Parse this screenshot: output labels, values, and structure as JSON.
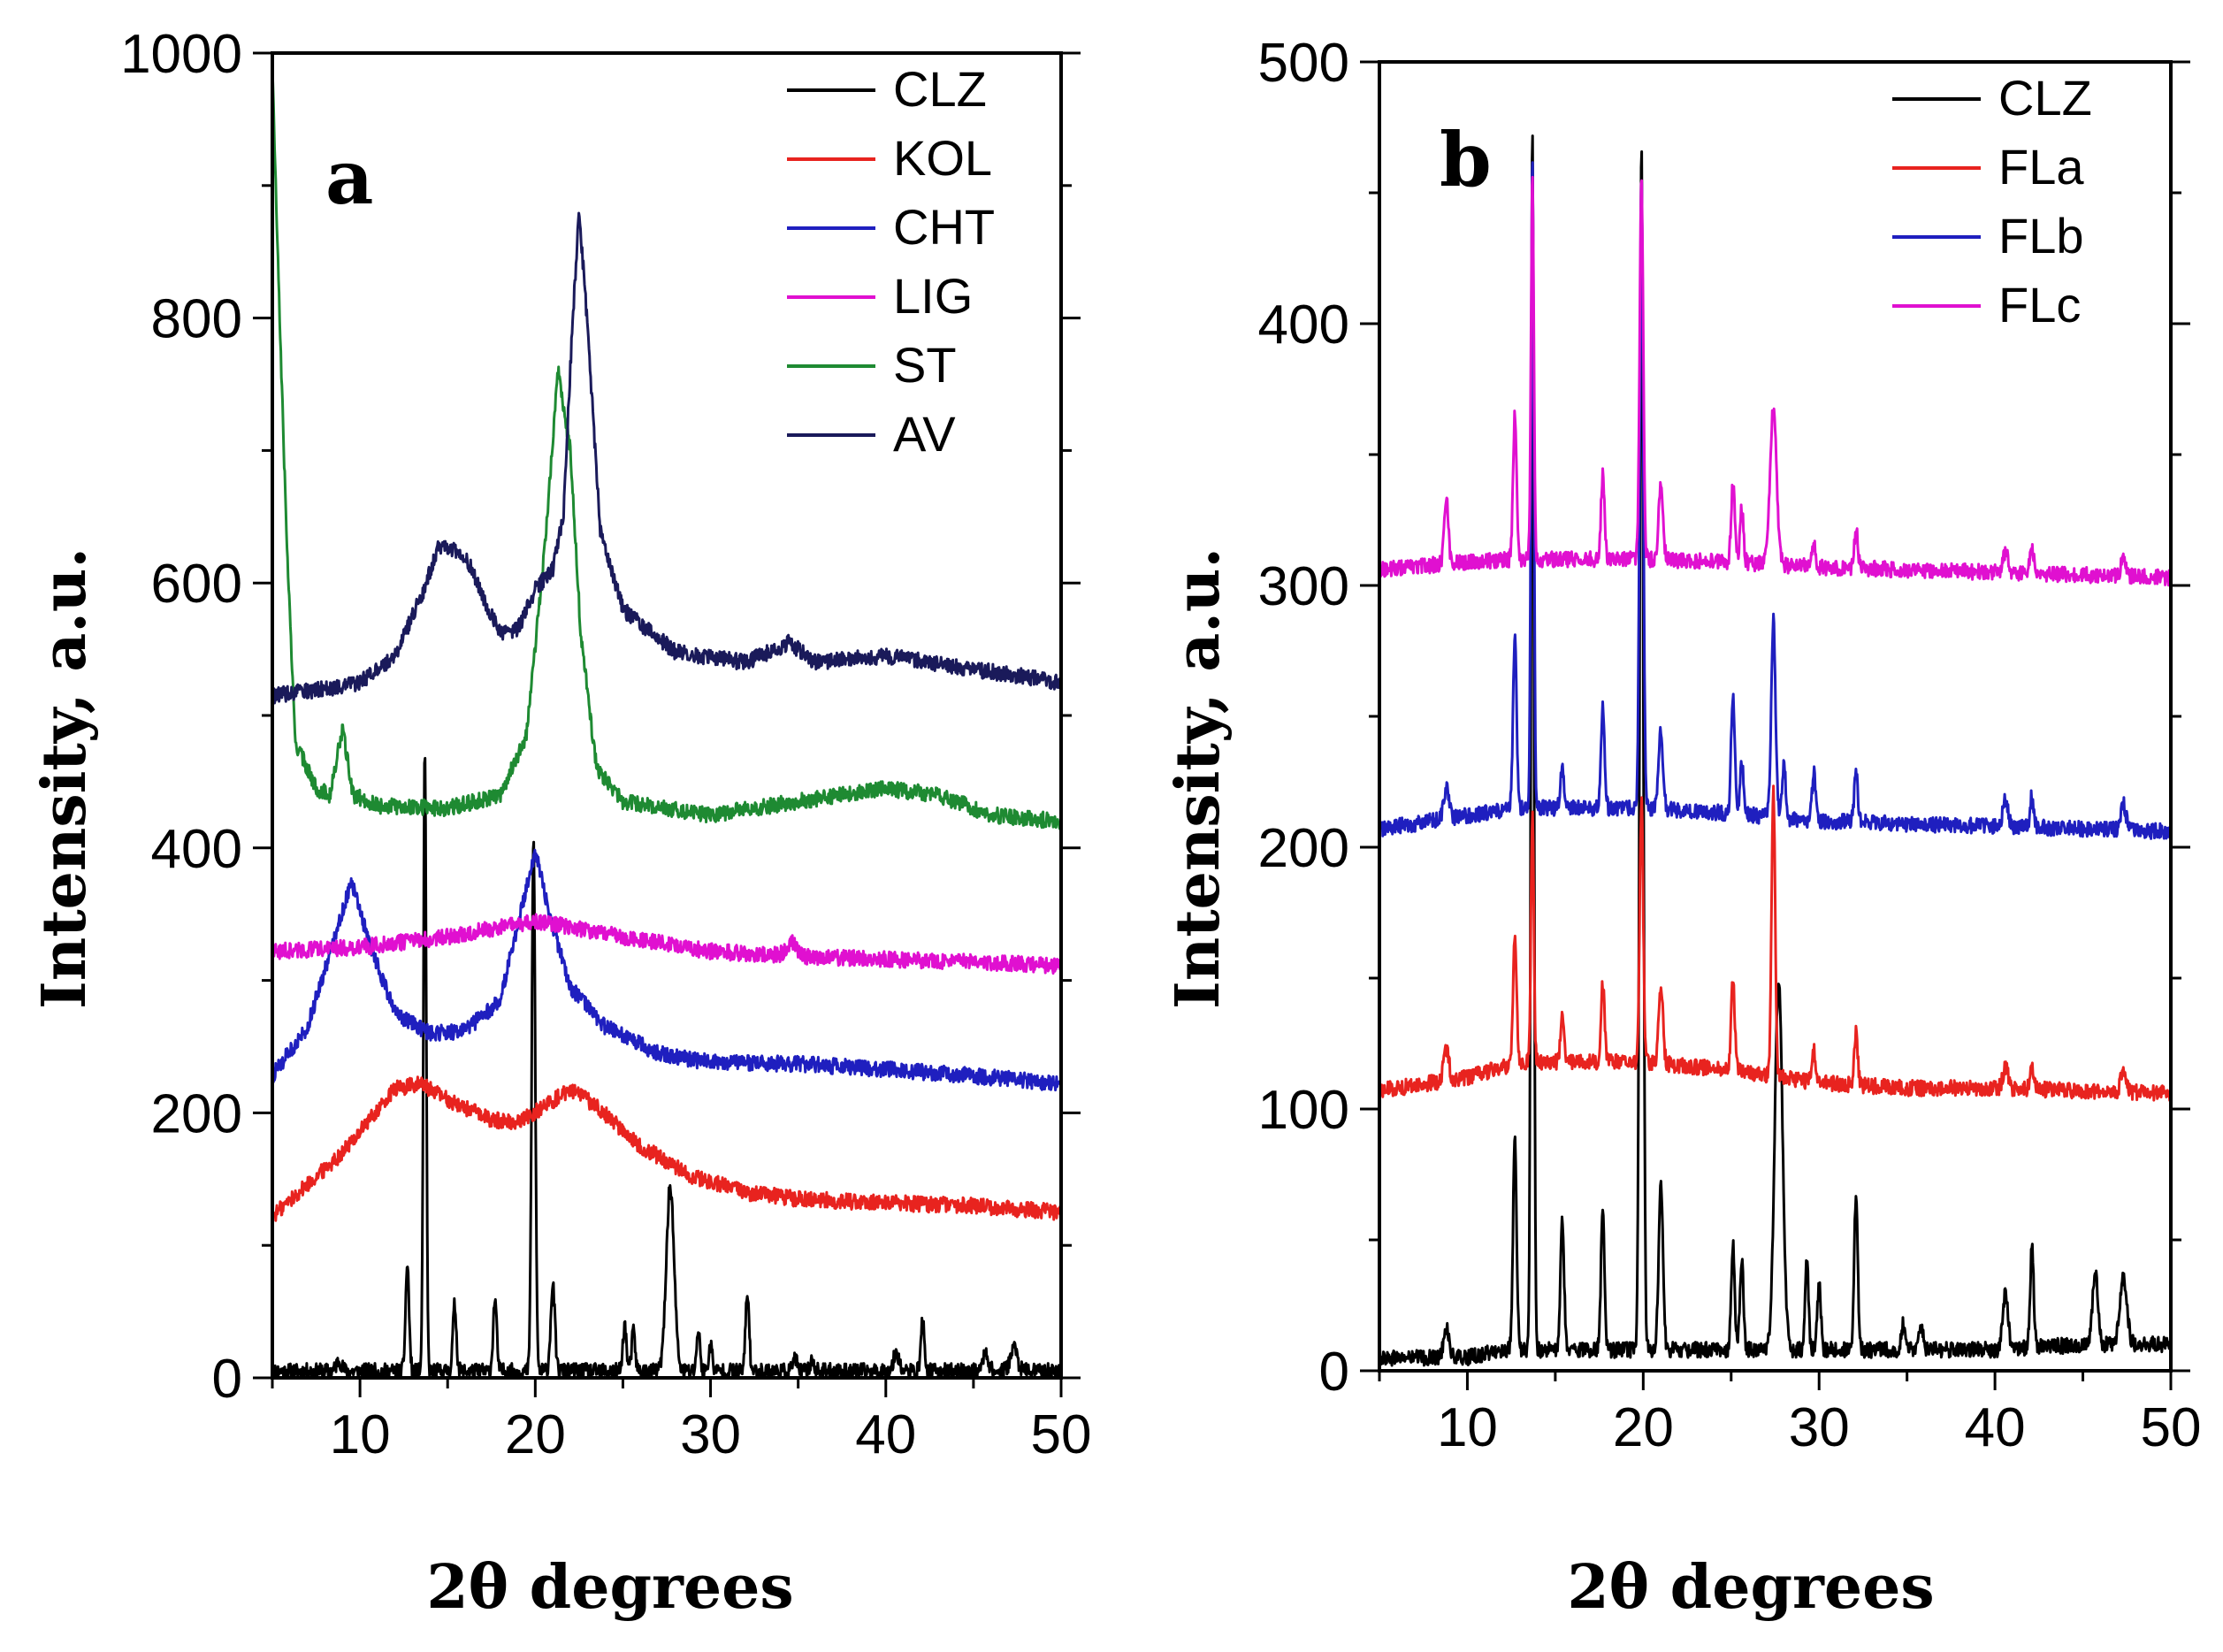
{
  "chart_data": [
    {
      "type": "line",
      "panel_label": "a",
      "xlabel": "2θ degrees",
      "ylabel": "Intensity, a.u.",
      "xlim": [
        5,
        50
      ],
      "ylim": [
        0,
        1000
      ],
      "xticks": [
        10,
        20,
        30,
        40,
        50
      ],
      "yticks": [
        0,
        200,
        400,
        600,
        800,
        1000
      ],
      "legend_position": "top-right",
      "series": [
        {
          "name": "CLZ",
          "color": "#000000",
          "baseline": 5,
          "anchors": [
            [
              5,
              5
            ],
            [
              50,
              5
            ]
          ],
          "peaks": [
            [
              8.8,
              8,
              0.15
            ],
            [
              12.7,
              80,
              0.1
            ],
            [
              13.7,
              470,
              0.08
            ],
            [
              15.4,
              50,
              0.1
            ],
            [
              17.7,
              55,
              0.1
            ],
            [
              19.9,
              400,
              0.1
            ],
            [
              21,
              65,
              0.12
            ],
            [
              25.1,
              35,
              0.1
            ],
            [
              25.6,
              30,
              0.1
            ],
            [
              27.7,
              140,
              0.22
            ],
            [
              29.3,
              30,
              0.1
            ],
            [
              30,
              20,
              0.1
            ],
            [
              32.1,
              60,
              0.1
            ],
            [
              34.8,
              10,
              0.12
            ],
            [
              35.8,
              8,
              0.12
            ],
            [
              40.6,
              15,
              0.15
            ],
            [
              42.1,
              38,
              0.1
            ],
            [
              45.7,
              15,
              0.15
            ],
            [
              47.3,
              18,
              0.2
            ]
          ]
        },
        {
          "name": "KOL",
          "color": "#e8231f",
          "anchors": [
            [
              5,
              122
            ],
            [
              9,
              170
            ],
            [
              12,
              218
            ],
            [
              13.5,
              222
            ],
            [
              15,
              210
            ],
            [
              17.5,
              195
            ],
            [
              19,
              193
            ],
            [
              20.5,
              205
            ],
            [
              22,
              218
            ],
            [
              23.5,
              205
            ],
            [
              26,
              175
            ],
            [
              29,
              152
            ],
            [
              32,
              140
            ],
            [
              35,
              135
            ],
            [
              40,
              132
            ],
            [
              45,
              130
            ],
            [
              50,
              125
            ]
          ],
          "peaks": []
        },
        {
          "name": "CHT",
          "color": "#1f1fbf",
          "anchors": [
            [
              5,
              228
            ],
            [
              7,
              265
            ],
            [
              8.5,
              330
            ],
            [
              9.5,
              375
            ],
            [
              10.5,
              330
            ],
            [
              12,
              275
            ],
            [
              14,
              260
            ],
            [
              16,
              262
            ],
            [
              18,
              285
            ],
            [
              19.5,
              370
            ],
            [
              20,
              398
            ],
            [
              20.8,
              350
            ],
            [
              22,
              295
            ],
            [
              24,
              265
            ],
            [
              27,
              245
            ],
            [
              30,
              238
            ],
            [
              35,
              237
            ],
            [
              40,
              233
            ],
            [
              45,
              228
            ],
            [
              50,
              222
            ]
          ],
          "peaks": []
        },
        {
          "name": "LIG",
          "color": "#e010d0",
          "anchors": [
            [
              5,
              322
            ],
            [
              10,
              325
            ],
            [
              15,
              333
            ],
            [
              20,
              345
            ],
            [
              25,
              333
            ],
            [
              30,
              322
            ],
            [
              35,
              318
            ],
            [
              40,
              316
            ],
            [
              45,
              314
            ],
            [
              50,
              311
            ]
          ],
          "peaks": [
            [
              34.6,
              10,
              0.3
            ]
          ]
        },
        {
          "name": "ST",
          "color": "#1e8a32",
          "anchors": [
            [
              5,
              990
            ],
            [
              5.3,
              850
            ],
            [
              5.8,
              640
            ],
            [
              6.3,
              480
            ],
            [
              7,
              460
            ],
            [
              7.5,
              445
            ],
            [
              8.3,
              440
            ],
            [
              9,
              490
            ],
            [
              9.6,
              440
            ],
            [
              11,
              432
            ],
            [
              15,
              430
            ],
            [
              18,
              440
            ],
            [
              19.5,
              485
            ],
            [
              20.5,
              620
            ],
            [
              21.3,
              760
            ],
            [
              22,
              700
            ],
            [
              22.6,
              560
            ],
            [
              23.5,
              460
            ],
            [
              25,
              435
            ],
            [
              30,
              425
            ],
            [
              35,
              435
            ],
            [
              40,
              445
            ],
            [
              43,
              440
            ],
            [
              46,
              425
            ],
            [
              50,
              420
            ]
          ],
          "peaks": []
        },
        {
          "name": "AV",
          "color": "#1a1a5a",
          "anchors": [
            [
              5,
              515
            ],
            [
              8,
              520
            ],
            [
              10,
              525
            ],
            [
              12,
              545
            ],
            [
              13.5,
              590
            ],
            [
              14.5,
              628
            ],
            [
              15.5,
              625
            ],
            [
              16.2,
              615
            ],
            [
              17,
              590
            ],
            [
              18,
              562
            ],
            [
              19,
              565
            ],
            [
              20,
              595
            ],
            [
              21,
              610
            ],
            [
              21.6,
              650
            ],
            [
              22.1,
              790
            ],
            [
              22.5,
              882
            ],
            [
              23,
              790
            ],
            [
              23.7,
              640
            ],
            [
              25,
              580
            ],
            [
              28,
              548
            ],
            [
              32,
              540
            ],
            [
              34.5,
              555
            ],
            [
              36,
              540
            ],
            [
              40,
              545
            ],
            [
              45,
              535
            ],
            [
              50,
              525
            ]
          ],
          "peaks": []
        }
      ]
    },
    {
      "type": "line",
      "panel_label": "b",
      "xlabel": "2θ degrees",
      "ylabel": "Intensity, a.u.",
      "xlim": [
        5,
        50
      ],
      "ylim": [
        0,
        500
      ],
      "xticks": [
        10,
        20,
        30,
        40,
        50
      ],
      "yticks": [
        0,
        100,
        200,
        300,
        400,
        500
      ],
      "legend_position": "top-right",
      "series": [
        {
          "name": "CLZ",
          "color": "#000000",
          "anchors": [
            [
              5,
              5
            ],
            [
              10,
              5
            ],
            [
              12,
              8
            ],
            [
              20,
              8
            ],
            [
              30,
              8
            ],
            [
              40,
              8
            ],
            [
              45,
              10
            ],
            [
              50,
              10
            ]
          ],
          "peaks": [
            [
              8.8,
              12,
              0.15
            ],
            [
              12.7,
              80,
              0.1
            ],
            [
              13.7,
              470,
              0.08
            ],
            [
              15.4,
              50,
              0.1
            ],
            [
              17.7,
              55,
              0.1
            ],
            [
              19.9,
              460,
              0.1
            ],
            [
              21,
              65,
              0.12
            ],
            [
              25.1,
              40,
              0.1
            ],
            [
              25.6,
              35,
              0.1
            ],
            [
              27.7,
              140,
              0.22
            ],
            [
              29.3,
              35,
              0.1
            ],
            [
              30,
              25,
              0.1
            ],
            [
              32.1,
              60,
              0.1
            ],
            [
              34.8,
              10,
              0.12
            ],
            [
              35.8,
              8,
              0.12
            ],
            [
              40.6,
              22,
              0.15
            ],
            [
              42.1,
              38,
              0.1
            ],
            [
              45.7,
              28,
              0.15
            ],
            [
              47.3,
              25,
              0.2
            ]
          ]
        },
        {
          "name": "FLa",
          "color": "#e8231f",
          "anchors": [
            [
              5,
              107
            ],
            [
              10,
              112
            ],
            [
              13,
              118
            ],
            [
              20,
              118
            ],
            [
              25,
              115
            ],
            [
              30,
              110
            ],
            [
              35,
              108
            ],
            [
              40,
              108
            ],
            [
              45,
              107
            ],
            [
              50,
              106
            ]
          ],
          "peaks": [
            [
              8.8,
              12,
              0.15
            ],
            [
              12.7,
              50,
              0.1
            ],
            [
              13.7,
              95,
              0.08
            ],
            [
              15.4,
              18,
              0.1
            ],
            [
              17.7,
              30,
              0.1
            ],
            [
              19.9,
              100,
              0.1
            ],
            [
              21,
              30,
              0.12
            ],
            [
              25.1,
              35,
              0.1
            ],
            [
              27.4,
              110,
              0.1
            ],
            [
              29.7,
              12,
              0.1
            ],
            [
              32.1,
              20,
              0.1
            ],
            [
              40.6,
              8,
              0.15
            ],
            [
              42.1,
              10,
              0.1
            ],
            [
              47.3,
              8,
              0.15
            ]
          ]
        },
        {
          "name": "FLb",
          "color": "#1f1fbf",
          "anchors": [
            [
              5,
              207
            ],
            [
              10,
              212
            ],
            [
              13,
              215
            ],
            [
              20,
              215
            ],
            [
              25,
              213
            ],
            [
              30,
              210
            ],
            [
              35,
              209
            ],
            [
              40,
              208
            ],
            [
              45,
              207
            ],
            [
              50,
              206
            ]
          ],
          "peaks": [
            [
              8.8,
              12,
              0.15
            ],
            [
              12.7,
              65,
              0.1
            ],
            [
              13.7,
              250,
              0.08
            ],
            [
              15.4,
              15,
              0.1
            ],
            [
              17.7,
              38,
              0.1
            ],
            [
              19.9,
              240,
              0.1
            ],
            [
              21,
              30,
              0.12
            ],
            [
              25.1,
              45,
              0.1
            ],
            [
              25.6,
              20,
              0.1
            ],
            [
              27.4,
              75,
              0.12
            ],
            [
              28,
              20,
              0.1
            ],
            [
              29.7,
              18,
              0.1
            ],
            [
              32.1,
              20,
              0.1
            ],
            [
              40.6,
              10,
              0.15
            ],
            [
              42.1,
              12,
              0.1
            ],
            [
              47.3,
              10,
              0.15
            ]
          ]
        },
        {
          "name": "FLc",
          "color": "#e010d0",
          "anchors": [
            [
              5,
              306
            ],
            [
              10,
              309
            ],
            [
              13,
              310
            ],
            [
              20,
              310
            ],
            [
              25,
              309
            ],
            [
              30,
              307
            ],
            [
              35,
              306
            ],
            [
              40,
              305
            ],
            [
              45,
              304
            ],
            [
              50,
              303
            ]
          ],
          "peaks": [
            [
              8.8,
              25,
              0.12
            ],
            [
              12.7,
              55,
              0.1
            ],
            [
              13.7,
              145,
              0.08
            ],
            [
              17.7,
              33,
              0.1
            ],
            [
              19.9,
              145,
              0.1
            ],
            [
              21,
              30,
              0.12
            ],
            [
              25.1,
              30,
              0.1
            ],
            [
              25.6,
              20,
              0.1
            ],
            [
              27.4,
              60,
              0.18
            ],
            [
              29.7,
              10,
              0.1
            ],
            [
              32.1,
              15,
              0.1
            ],
            [
              40.6,
              8,
              0.15
            ],
            [
              42.1,
              10,
              0.1
            ],
            [
              47.3,
              6,
              0.15
            ]
          ]
        }
      ]
    }
  ]
}
